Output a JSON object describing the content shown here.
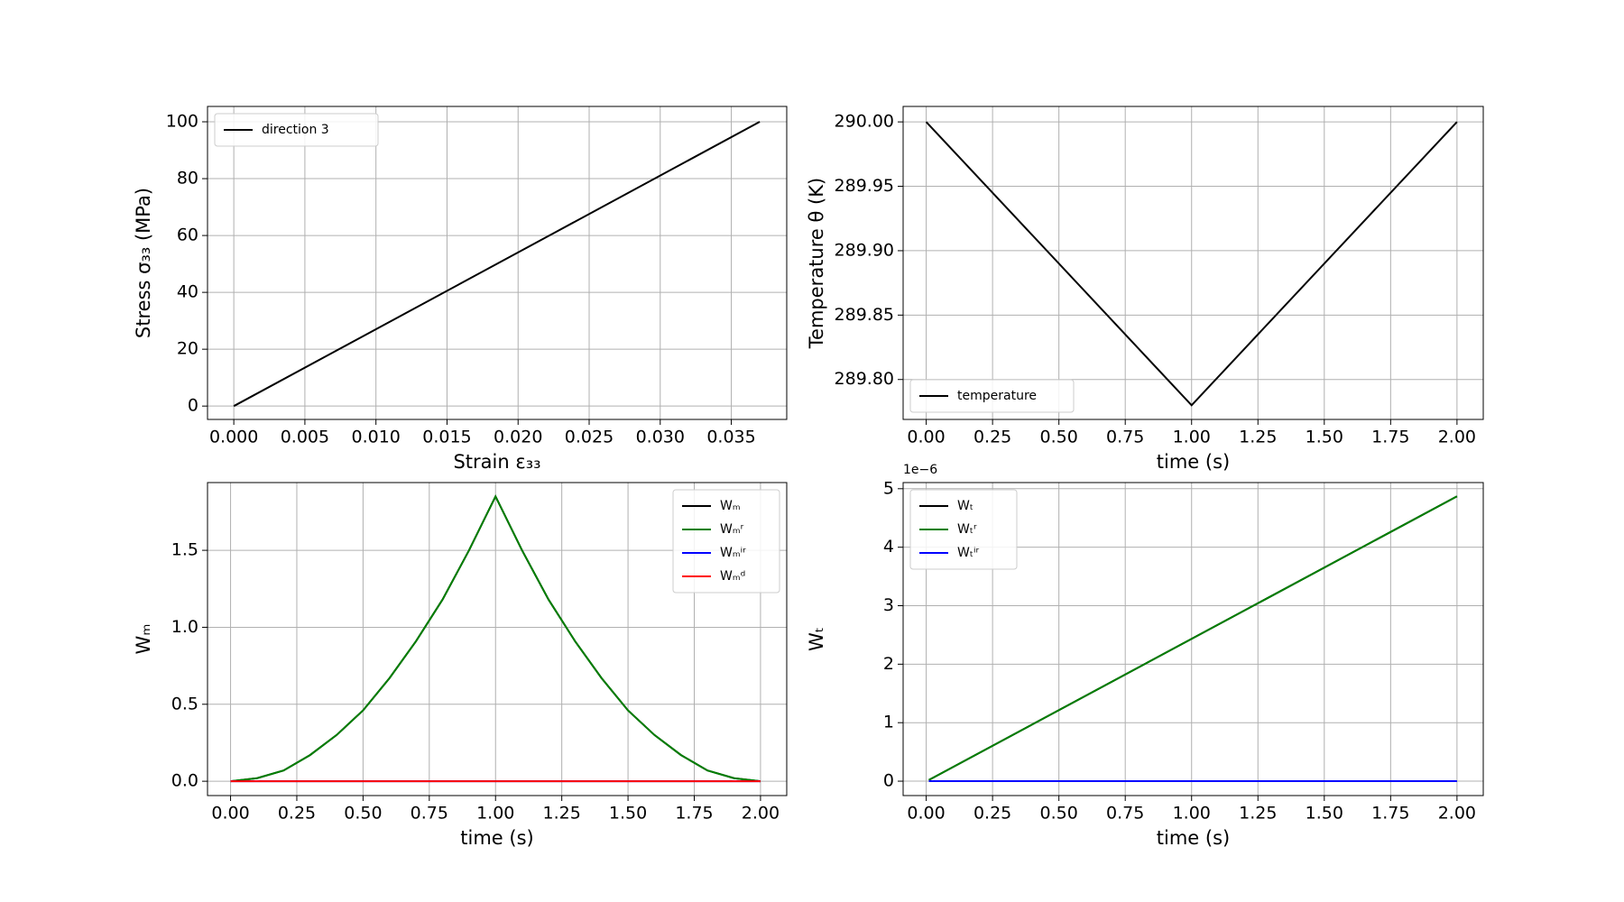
{
  "chart_data": [
    {
      "type": "line",
      "xlabel": "Strain ε₃₃",
      "ylabel": "Stress σ₃₃ (MPa)",
      "x": [
        0,
        0.037
      ],
      "series": [
        {
          "name": "direction 3",
          "color": "#000000",
          "values": [
            0,
            100
          ]
        }
      ],
      "xlim": [
        -0.00185,
        0.0389
      ],
      "ylim": [
        -4.7,
        105.4
      ],
      "xticks": [
        {
          "value": 0,
          "label": "0.000"
        },
        {
          "value": 0.005,
          "label": "0.005"
        },
        {
          "value": 0.01,
          "label": "0.010"
        },
        {
          "value": 0.015,
          "label": "0.015"
        },
        {
          "value": 0.02,
          "label": "0.020"
        },
        {
          "value": 0.025,
          "label": "0.025"
        },
        {
          "value": 0.03,
          "label": "0.030"
        },
        {
          "value": 0.035,
          "label": "0.035"
        }
      ],
      "yticks": [
        0,
        20,
        40,
        60,
        80,
        100
      ],
      "grid": true,
      "legend": "upper left"
    },
    {
      "type": "line",
      "xlabel": "time (s)",
      "ylabel": "Temperature θ (K)",
      "x": [
        0,
        1,
        2
      ],
      "series": [
        {
          "name": "temperature",
          "color": "#000000",
          "values": [
            290.0,
            289.78,
            290.0
          ]
        }
      ],
      "xlim": [
        -0.087,
        2.099
      ],
      "ylim": [
        289.769,
        290.012
      ],
      "xticks": [
        {
          "value": 0,
          "label": "0.00"
        },
        {
          "value": 0.25,
          "label": "0.25"
        },
        {
          "value": 0.5,
          "label": "0.50"
        },
        {
          "value": 0.75,
          "label": "0.75"
        },
        {
          "value": 1,
          "label": "1.00"
        },
        {
          "value": 1.25,
          "label": "1.25"
        },
        {
          "value": 1.5,
          "label": "1.50"
        },
        {
          "value": 1.75,
          "label": "1.75"
        },
        {
          "value": 2,
          "label": "2.00"
        }
      ],
      "yticks": [
        {
          "value": 289.8,
          "label": "289.80"
        },
        {
          "value": 289.85,
          "label": "289.85"
        },
        {
          "value": 289.9,
          "label": "289.90"
        },
        {
          "value": 289.95,
          "label": "289.95"
        },
        {
          "value": 290,
          "label": "290.00"
        }
      ],
      "grid": true,
      "legend": "lower left"
    },
    {
      "type": "line",
      "xlabel": "time (s)",
      "ylabel": "Wₘ",
      "x": [
        0,
        0.1,
        0.2,
        0.3,
        0.4,
        0.5,
        0.6,
        0.7,
        0.8,
        0.9,
        1.0,
        1.1,
        1.2,
        1.3,
        1.4,
        1.5,
        1.6,
        1.7,
        1.8,
        1.9,
        2.0
      ],
      "series": [
        {
          "name": "Wₘ",
          "color": "#000000",
          "values": [
            0,
            0.02,
            0.07,
            0.17,
            0.3,
            0.46,
            0.67,
            0.91,
            1.18,
            1.5,
            1.85,
            1.5,
            1.18,
            0.91,
            0.67,
            0.46,
            0.3,
            0.17,
            0.07,
            0.02,
            0
          ]
        },
        {
          "name": "Wₘʳ",
          "color": "#007f00",
          "values": [
            0,
            0.02,
            0.07,
            0.17,
            0.3,
            0.46,
            0.67,
            0.91,
            1.18,
            1.5,
            1.85,
            1.5,
            1.18,
            0.91,
            0.67,
            0.46,
            0.3,
            0.17,
            0.07,
            0.02,
            0
          ]
        },
        {
          "name": "Wₘⁱʳ",
          "color": "#0000ff",
          "values": [
            0,
            0,
            0,
            0,
            0,
            0,
            0,
            0,
            0,
            0,
            0,
            0,
            0,
            0,
            0,
            0,
            0,
            0,
            0,
            0,
            0
          ]
        },
        {
          "name": "Wₘᵈ",
          "color": "#ff0000",
          "values": [
            0,
            0,
            0,
            0,
            0,
            0,
            0,
            0,
            0,
            0,
            0,
            0,
            0,
            0,
            0,
            0,
            0,
            0,
            0,
            0,
            0
          ]
        }
      ],
      "xlim": [
        -0.087,
        2.099
      ],
      "ylim": [
        -0.093,
        1.94
      ],
      "xticks": [
        {
          "value": 0,
          "label": "0.00"
        },
        {
          "value": 0.25,
          "label": "0.25"
        },
        {
          "value": 0.5,
          "label": "0.50"
        },
        {
          "value": 0.75,
          "label": "0.75"
        },
        {
          "value": 1,
          "label": "1.00"
        },
        {
          "value": 1.25,
          "label": "1.25"
        },
        {
          "value": 1.5,
          "label": "1.50"
        },
        {
          "value": 1.75,
          "label": "1.75"
        },
        {
          "value": 2,
          "label": "2.00"
        }
      ],
      "yticks": [
        {
          "value": 0,
          "label": "0.0"
        },
        0.5,
        {
          "value": 1,
          "label": "1.0"
        },
        1.5
      ],
      "grid": true,
      "legend": "upper right"
    },
    {
      "type": "line",
      "xlabel": "time (s)",
      "ylabel": "Wₜ",
      "y_offset_label": "1e−6",
      "x": [
        0.01,
        2.0
      ],
      "series": [
        {
          "name": "Wₜ",
          "color": "#000000",
          "values": [
            0.02,
            4.87
          ]
        },
        {
          "name": "Wₜʳ",
          "color": "#007f00",
          "values": [
            0.02,
            4.87
          ]
        },
        {
          "name": "Wₜⁱʳ",
          "color": "#0000ff",
          "values": [
            0,
            0
          ]
        }
      ],
      "xlim": [
        -0.087,
        2.099
      ],
      "ylim": [
        -0.246,
        5.105
      ],
      "xticks": [
        {
          "value": 0,
          "label": "0.00"
        },
        {
          "value": 0.25,
          "label": "0.25"
        },
        {
          "value": 0.5,
          "label": "0.50"
        },
        {
          "value": 0.75,
          "label": "0.75"
        },
        {
          "value": 1,
          "label": "1.00"
        },
        {
          "value": 1.25,
          "label": "1.25"
        },
        {
          "value": 1.5,
          "label": "1.50"
        },
        {
          "value": 1.75,
          "label": "1.75"
        },
        {
          "value": 2,
          "label": "2.00"
        }
      ],
      "yticks": [
        0,
        1,
        2,
        3,
        4,
        5
      ],
      "grid": true,
      "legend": "upper left"
    }
  ]
}
